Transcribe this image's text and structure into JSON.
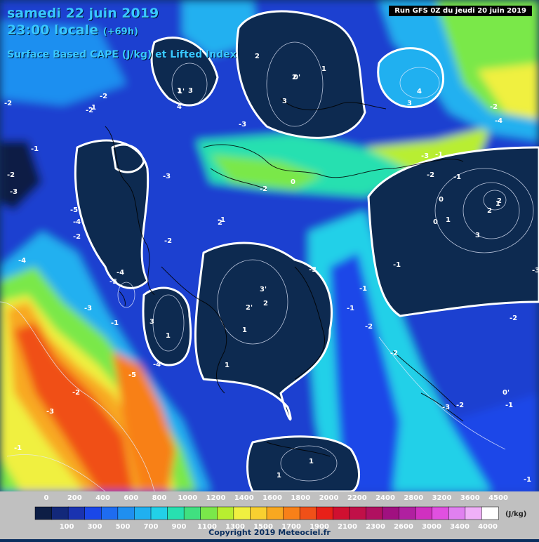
{
  "header": {
    "date": "samedi 22 juin 2019",
    "time": "23:00 locale",
    "lead": "(+69h)",
    "parameter": "Surface Based CAPE (J/kg) et Lifted Index",
    "run": "Run GFS 0Z du jeudi 20 juin 2019"
  },
  "legend": {
    "top_labels": [
      "0",
      "200",
      "400",
      "600",
      "800",
      "1000",
      "1200",
      "1400",
      "1600",
      "1800",
      "2000",
      "2200",
      "2400",
      "2800",
      "3200",
      "3600",
      "4500"
    ],
    "bottom_labels": [
      "100",
      "300",
      "500",
      "700",
      "900",
      "1100",
      "1300",
      "1500",
      "1700",
      "1900",
      "2100",
      "2300",
      "2600",
      "3000",
      "3400",
      "4000"
    ],
    "unit": "(J/kg)",
    "colors": [
      "#0d1e45",
      "#12287a",
      "#1a33b0",
      "#1a47e8",
      "#1e6cf0",
      "#1f8ff0",
      "#20b0f0",
      "#22d0e8",
      "#28e0b0",
      "#40e080",
      "#7ae84a",
      "#b8ee30",
      "#f0f040",
      "#f8d030",
      "#f8a820",
      "#f88018",
      "#f05018",
      "#e82018",
      "#d01030",
      "#c01048",
      "#b01060",
      "#a01080",
      "#b020a0",
      "#d030c0",
      "#e050e0",
      "#e080f0",
      "#f0b0f8",
      "#ffffff"
    ]
  },
  "copyright": "Copyright 2019 Meteociel.fr",
  "li_labels": [
    "-2",
    "-2",
    "-3",
    "-2",
    "-2",
    "-1",
    "-1",
    "-4",
    "-2",
    "-5",
    "-4",
    "-4",
    "-5",
    "-1",
    "-2",
    "-3",
    "-3",
    "-1",
    "-5",
    "-4",
    "-3",
    "-2",
    "-3",
    "-2",
    "-1",
    "-3",
    "-1",
    "-2",
    "-2",
    "-1",
    "-1",
    "-2",
    "-3",
    "-1",
    "-1",
    "-3",
    "-2",
    "-2",
    "-4",
    "-1",
    "-2",
    "-3",
    "-1",
    "0",
    "0",
    "1",
    "2",
    "3",
    "1",
    "2",
    "3",
    "4",
    "2",
    "0'",
    "1",
    "2",
    "3",
    "1",
    "4",
    "3",
    "2",
    "1",
    "0",
    "1'",
    "2'",
    "3'",
    "2",
    "1",
    "1",
    "3",
    "0'",
    "1",
    "1"
  ]
}
